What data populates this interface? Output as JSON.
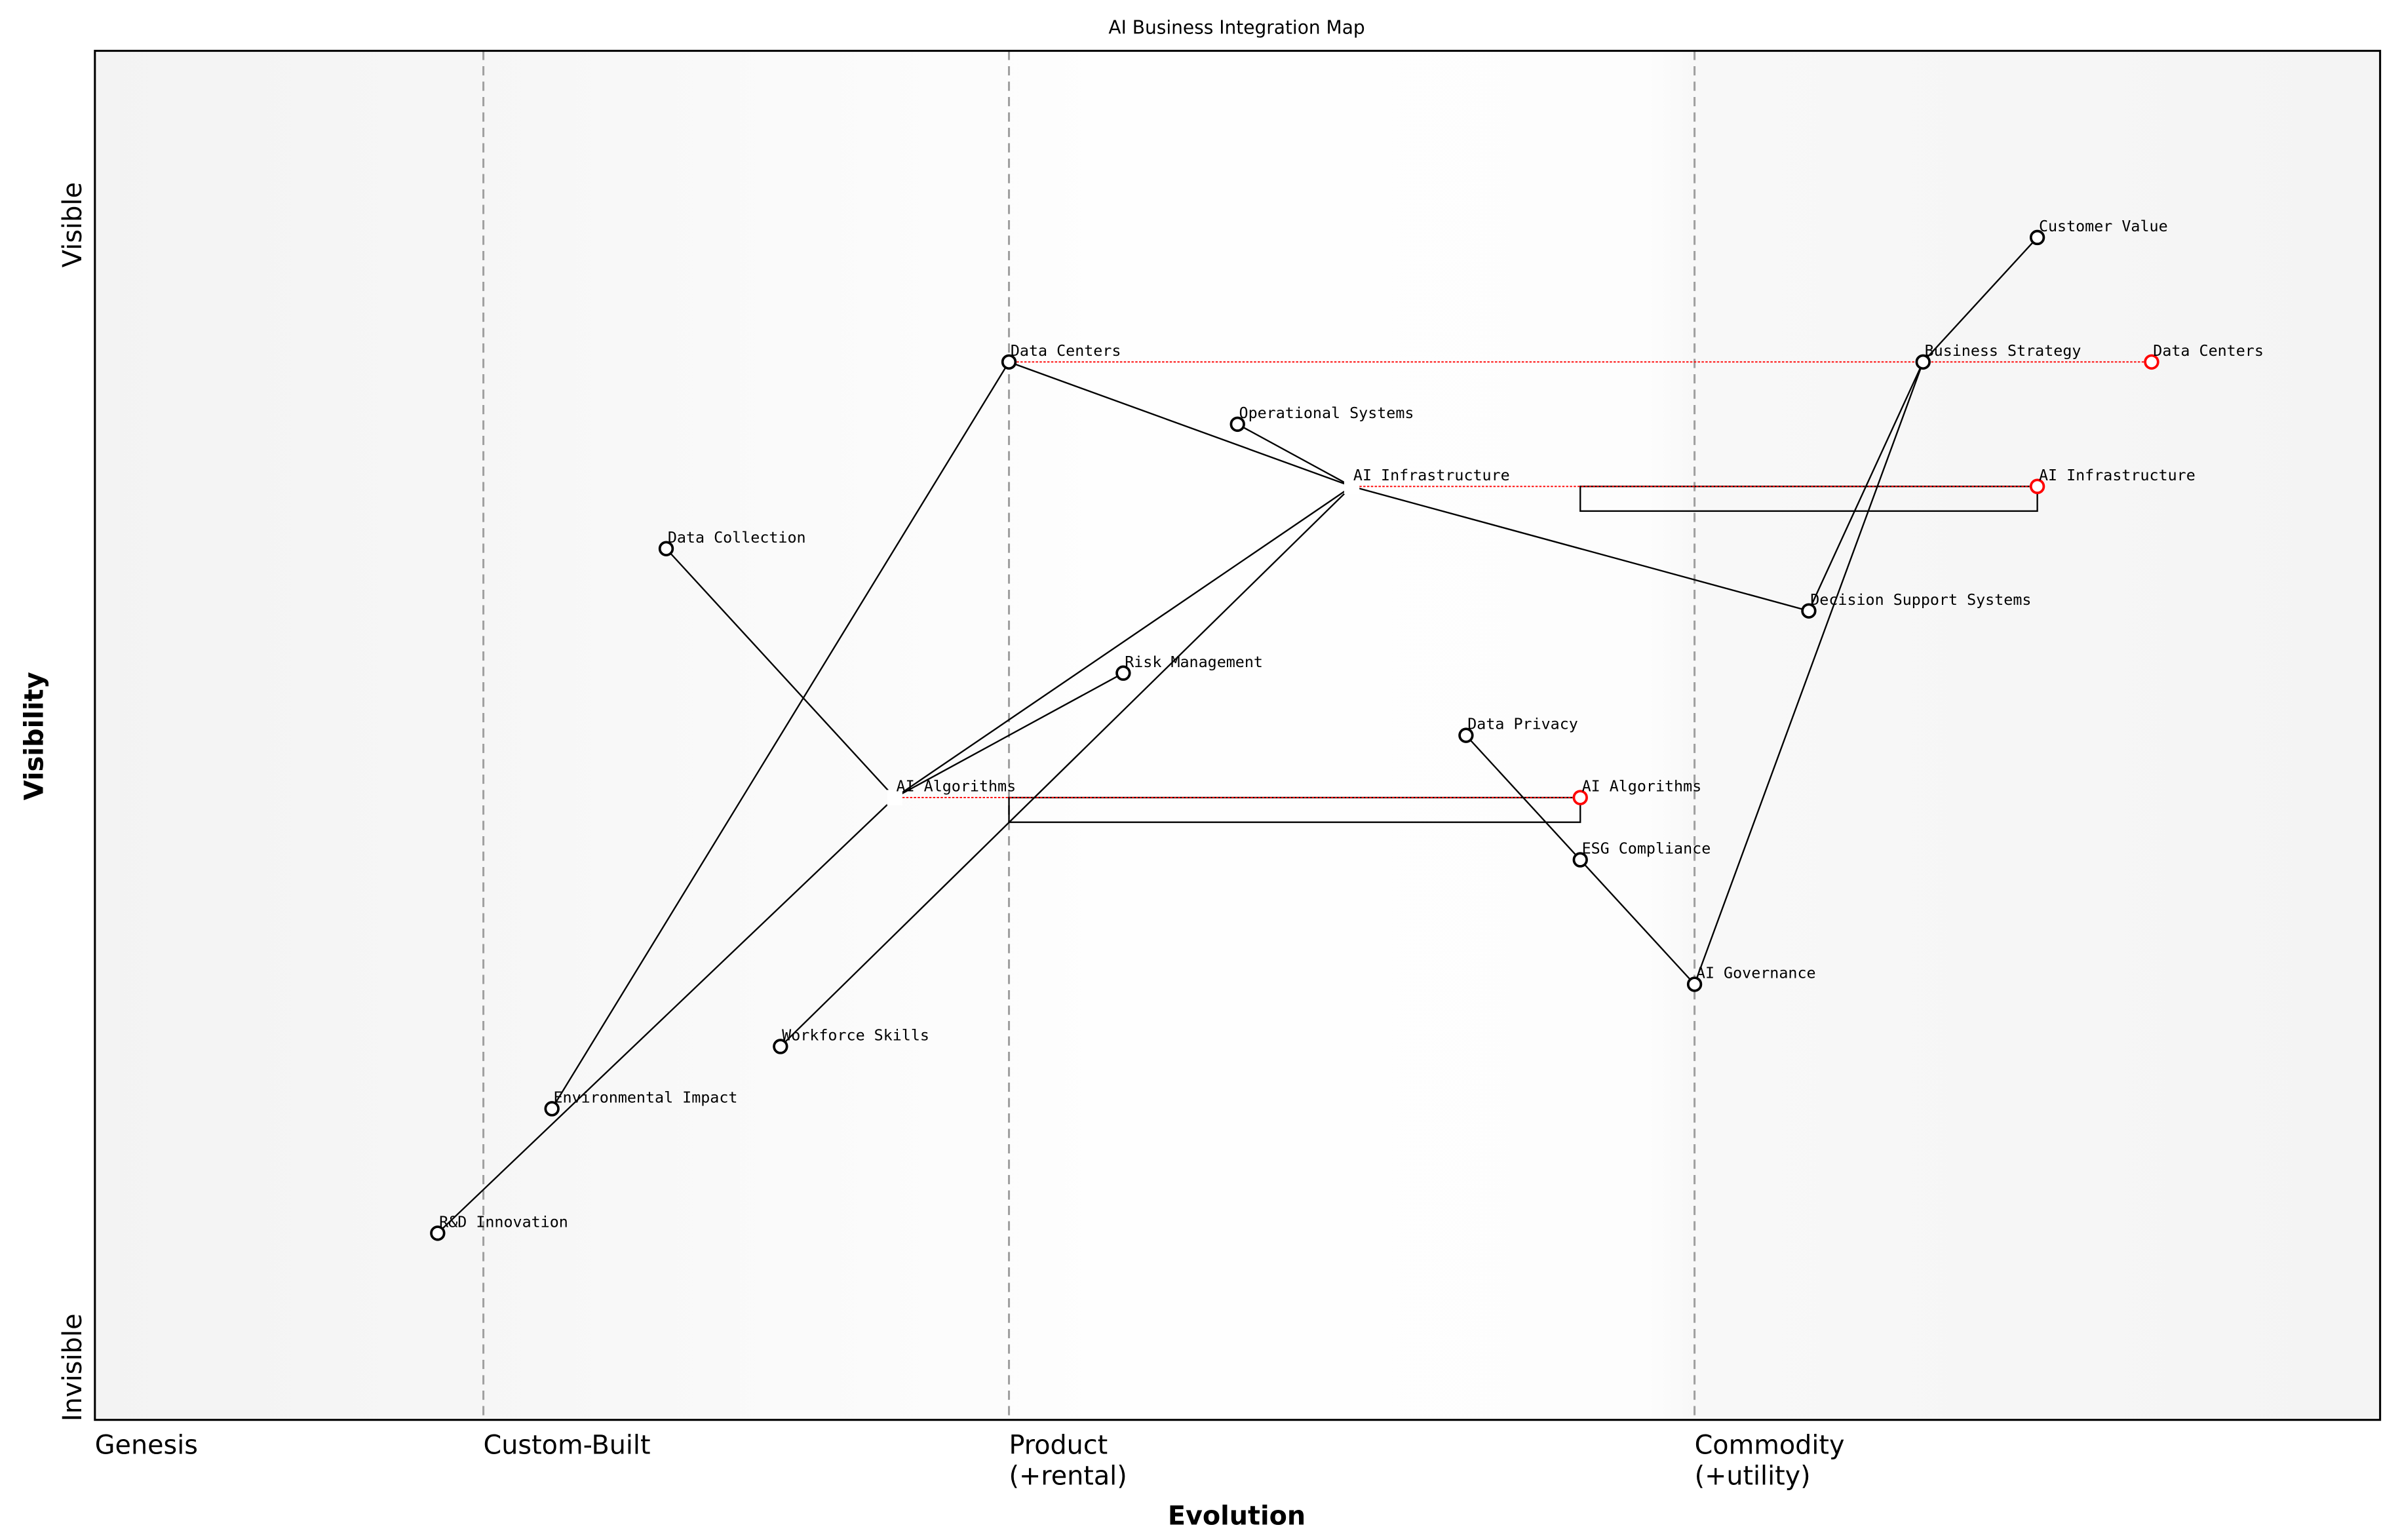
{
  "chart_data": {
    "type": "scatter",
    "subtype": "wardley-map",
    "title": "AI Business Integration Map",
    "xlabel": "Evolution",
    "ylabel": "Visibility",
    "xlim": [
      0,
      1
    ],
    "ylim": [
      0,
      1.1
    ],
    "y_top_label": "Visible",
    "y_bottom_label": "Invisible",
    "stages": [
      {
        "label": "Genesis",
        "x": 0.0
      },
      {
        "label": "Custom-Built",
        "x": 0.17
      },
      {
        "label": "Product\n(+rental)",
        "x": 0.4
      },
      {
        "label": "Commodity\n(+utility)",
        "x": 0.7
      }
    ],
    "stage_lines": [
      0.17,
      0.4,
      0.7
    ],
    "nodes": [
      {
        "name": "Customer Value",
        "x": 0.85,
        "y": 0.95
      },
      {
        "name": "Business Strategy",
        "x": 0.8,
        "y": 0.85
      },
      {
        "name": "Data Centers",
        "x": 0.4,
        "y": 0.85
      },
      {
        "name": "Operational Systems",
        "x": 0.5,
        "y": 0.8
      },
      {
        "name": "AI Infrastructure",
        "x": 0.55,
        "y": 0.75,
        "hidden_marker": true
      },
      {
        "name": "Data Collection",
        "x": 0.25,
        "y": 0.7
      },
      {
        "name": "Decision Support Systems",
        "x": 0.75,
        "y": 0.65
      },
      {
        "name": "Risk Management",
        "x": 0.45,
        "y": 0.6
      },
      {
        "name": "Data Privacy",
        "x": 0.6,
        "y": 0.55
      },
      {
        "name": "AI Algorithms",
        "x": 0.35,
        "y": 0.5,
        "hidden_marker": true
      },
      {
        "name": "ESG Compliance",
        "x": 0.65,
        "y": 0.45
      },
      {
        "name": "AI Governance",
        "x": 0.7,
        "y": 0.35
      },
      {
        "name": "Workforce Skills",
        "x": 0.3,
        "y": 0.3
      },
      {
        "name": "Environmental Impact",
        "x": 0.2,
        "y": 0.25
      },
      {
        "name": "R&D Innovation",
        "x": 0.15,
        "y": 0.15
      }
    ],
    "links": [
      [
        "Customer Value",
        "Business Strategy"
      ],
      [
        "Business Strategy",
        "Decision Support Systems"
      ],
      [
        "Business Strategy",
        "AI Governance"
      ],
      [
        "Data Centers",
        "AI Infrastructure"
      ],
      [
        "Operational Systems",
        "AI Infrastructure"
      ],
      [
        "AI Infrastructure",
        "Decision Support Systems"
      ],
      [
        "AI Infrastructure",
        "AI Algorithms"
      ],
      [
        "AI Infrastructure",
        "Workforce Skills"
      ],
      [
        "Data Collection",
        "AI Algorithms"
      ],
      [
        "Risk Management",
        "AI Algorithms"
      ],
      [
        "AI Algorithms",
        "R&D Innovation"
      ],
      [
        "Data Centers",
        "Environmental Impact"
      ],
      [
        "Data Privacy",
        "ESG Compliance"
      ],
      [
        "ESG Compliance",
        "AI Governance"
      ]
    ],
    "evolutions": [
      {
        "name": "Data Centers",
        "from": 0.4,
        "to": 0.9,
        "y": 0.85
      },
      {
        "name": "AI Infrastructure",
        "from": 0.55,
        "to": 0.85,
        "y": 0.75
      },
      {
        "name": "AI Algorithms",
        "from": 0.35,
        "to": 0.65,
        "y": 0.5
      }
    ],
    "pipelines": [
      {
        "name": "AI Infrastructure",
        "x_start": 0.65,
        "x_end": 0.85,
        "y": 0.75
      },
      {
        "name": "AI Algorithms",
        "x_start": 0.4,
        "x_end": 0.65,
        "y": 0.5
      }
    ],
    "colors": {
      "node": "#000000",
      "evolved": "#ff0000",
      "stage_line": "#a0a0a0"
    }
  }
}
